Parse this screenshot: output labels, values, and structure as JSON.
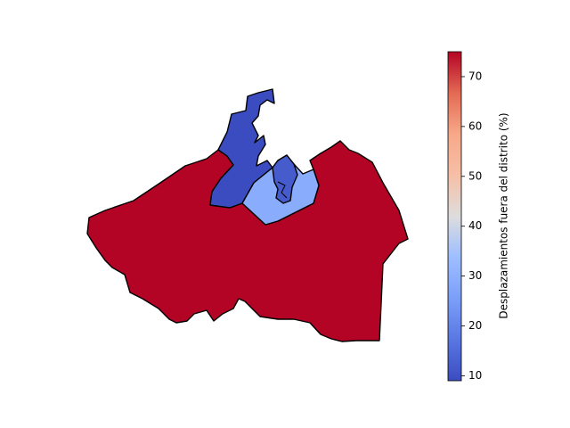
{
  "chart_data": {
    "type": "choropleth",
    "title": "",
    "colorbar": {
      "label": "Desplazamientos fuera del distrito (%)",
      "colormap": "coolwarm",
      "vmin": 9,
      "vmax": 75,
      "ticks": [
        10,
        20,
        30,
        40,
        50,
        60,
        70
      ]
    },
    "regions": [
      {
        "id": "southwest-large-district",
        "value": 75
      },
      {
        "id": "east-large-district",
        "value": 75
      },
      {
        "id": "port-north-district",
        "value": 9
      },
      {
        "id": "center-small-district",
        "value": 12
      },
      {
        "id": "center-light-district",
        "value": 29
      }
    ]
  },
  "colors": {
    "high": "#b40426",
    "low": "#3b4cc0",
    "mid_light": "#9ebeff",
    "mid_blue": "#5470de"
  }
}
